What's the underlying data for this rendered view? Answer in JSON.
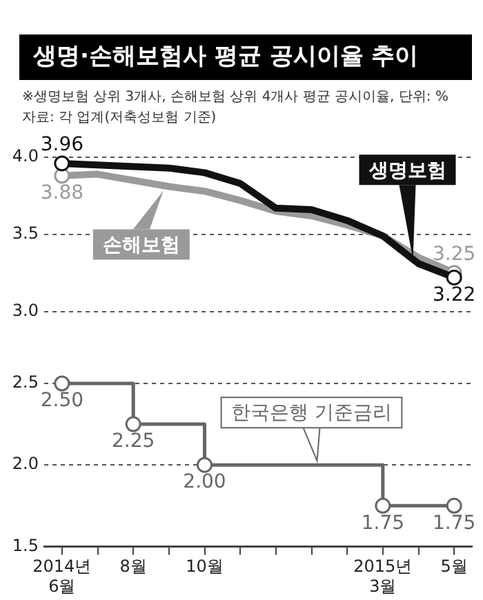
{
  "chart_data": [
    {
      "type": "line",
      "title": "생명·손해보험사 평균 공시이율 추이",
      "subtitle": "※생명보험 상위 3개사, 손해보험 상위 4개사 평균 공시이율, 단위: %",
      "annotations": [
        "자료: 각 업계(저축성보험 기준)"
      ],
      "categories": [
        null,
        null,
        null,
        null,
        null,
        null,
        null,
        null,
        null,
        null,
        null,
        null
      ],
      "series": [
        {
          "name": "생명보험",
          "color": "#111111",
          "values": [
            3.96,
            3.95,
            3.94,
            3.93,
            3.9,
            3.83,
            3.67,
            3.66,
            3.59,
            3.49,
            3.31,
            3.22
          ],
          "value_labels": [
            "3.96",
            null,
            null,
            null,
            null,
            null,
            null,
            null,
            null,
            null,
            null,
            "3.22"
          ]
        },
        {
          "name": "손해보험",
          "color": "#9a9a9a",
          "values": [
            3.88,
            3.89,
            3.85,
            3.81,
            3.78,
            3.72,
            3.65,
            3.62,
            3.56,
            3.49,
            3.35,
            3.25
          ],
          "value_labels": [
            "3.88",
            null,
            null,
            null,
            null,
            null,
            null,
            null,
            null,
            null,
            null,
            "3.25"
          ]
        }
      ],
      "ylim": [
        3.0,
        4.0
      ],
      "yticks": [
        {
          "value": 3,
          "label": "3.0"
        },
        {
          "value": 3.5,
          "label": "3.5"
        },
        {
          "value": 4,
          "label": "4.0"
        }
      ],
      "grid": "y",
      "tick_labels": "y"
    },
    {
      "type": "step",
      "categories": [
        "2014년\n6월",
        null,
        "8월",
        null,
        "10월",
        null,
        null,
        null,
        null,
        "2015년\n3월",
        null,
        "5월"
      ],
      "series": [
        {
          "name": "한국은행 기준금리",
          "color": "#666666",
          "values": [
            2.5,
            2.5,
            2.25,
            2.25,
            2.0,
            2.0,
            2.0,
            2.0,
            2.0,
            1.75,
            1.75,
            1.75
          ],
          "value_labels": [
            "2.50",
            null,
            "2.25",
            null,
            "2.00",
            null,
            null,
            null,
            null,
            "1.75",
            null,
            "1.75"
          ]
        }
      ],
      "ylim": [
        1.5,
        2.5
      ],
      "yticks": [
        1.5,
        {
          "value": 2,
          "label": "2.0"
        },
        2.5
      ],
      "grid": "y"
    }
  ]
}
